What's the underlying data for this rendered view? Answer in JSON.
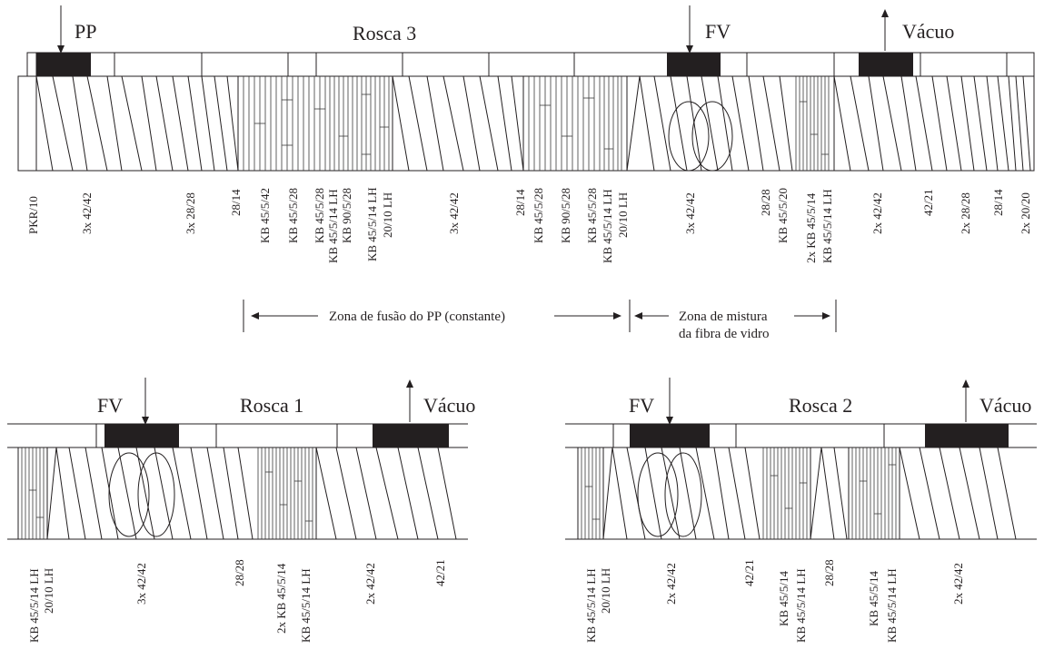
{
  "rosca3": {
    "title": "Rosca 3",
    "ports": [
      {
        "label": "PP",
        "direction": "in"
      },
      {
        "label": "FV",
        "direction": "in"
      },
      {
        "label": "Vácuo",
        "direction": "out"
      }
    ],
    "elements": [
      "PKR/10",
      "3x 42/42",
      "3x 28/28",
      "28/14",
      "KB 45/5/42",
      "KB 45/5/28",
      "KB 45/5/28",
      "KB 45/5/14  LH",
      "KB 90/5/28",
      "KB 45/5/14  LH",
      "20/10  LH",
      "3x 42/42",
      "28/14",
      "KB 45/5/28",
      "KB 90/5/28",
      "KB 45/5/28",
      "KB 45/5/14  LH",
      "20/10  LH",
      "3x 42/42",
      "28/28",
      "KB 45/5/20",
      "2x  KB 45/5/14",
      "KB 45/5/14 LH",
      "2x 42/42",
      "42/21",
      "2x 28/28",
      "28/14",
      "2x 20/20"
    ],
    "zones": [
      {
        "label": "Zona de fusão do PP (constante)"
      },
      {
        "label": "Zona de mistura",
        "label2": "da fibra de vidro"
      }
    ]
  },
  "rosca1": {
    "title": "Rosca 1",
    "ports": [
      {
        "label": "FV",
        "direction": "in"
      },
      {
        "label": "Vácuo",
        "direction": "out"
      }
    ],
    "elements": [
      "KB 45/5/14  LH",
      "20/10  LH",
      "3x 42/42",
      "28/28",
      "2x KB 45/5/14",
      "KB 45/5/14  LH",
      "2x 42/42",
      "42/21"
    ]
  },
  "rosca2": {
    "title": "Rosca 2",
    "ports": [
      {
        "label": "FV",
        "direction": "in"
      },
      {
        "label": "Vácuo",
        "direction": "out"
      }
    ],
    "elements": [
      "KB 45/5/14  LH",
      "20/10  LH",
      "2x 42/42",
      "42/21",
      "KB 45/5/14",
      "KB 45/5/14  LH",
      "28/28",
      "KB 45/5/14",
      "KB 45/5/14  LH",
      "2x 42/42"
    ]
  }
}
